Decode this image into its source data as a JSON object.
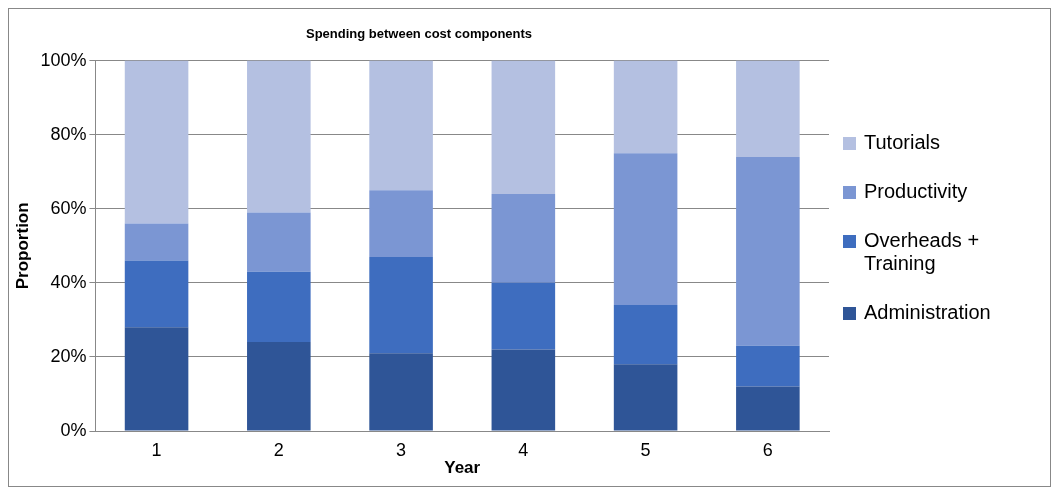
{
  "chart_data": {
    "type": "bar",
    "title": "Spending between cost components",
    "xlabel": "Year",
    "ylabel": "Proportion",
    "categories": [
      "1",
      "2",
      "3",
      "4",
      "5",
      "6"
    ],
    "stacked": true,
    "ylim": [
      0,
      100
    ],
    "yticks": [
      {
        "value": 0,
        "label": "0%"
      },
      {
        "value": 20,
        "label": "20%"
      },
      {
        "value": 40,
        "label": "40%"
      },
      {
        "value": 60,
        "label": "60%"
      },
      {
        "value": 80,
        "label": "80%"
      },
      {
        "value": 100,
        "label": "100%"
      }
    ],
    "grid": "y",
    "legend": "right",
    "series": [
      {
        "name": "Administration",
        "color": "#2f5597",
        "values": [
          28,
          24,
          21,
          22,
          18,
          12
        ]
      },
      {
        "name": "Overheads + Training",
        "color": "#3e6dbf",
        "values": [
          18,
          19,
          26,
          18,
          16,
          11
        ]
      },
      {
        "name": "Productivity",
        "color": "#7b96d3",
        "values": [
          10,
          16,
          18,
          24,
          41,
          51
        ]
      },
      {
        "name": "Tutorials",
        "color": "#b4c0e1",
        "values": [
          44,
          41,
          35,
          36,
          25,
          26
        ]
      }
    ]
  }
}
